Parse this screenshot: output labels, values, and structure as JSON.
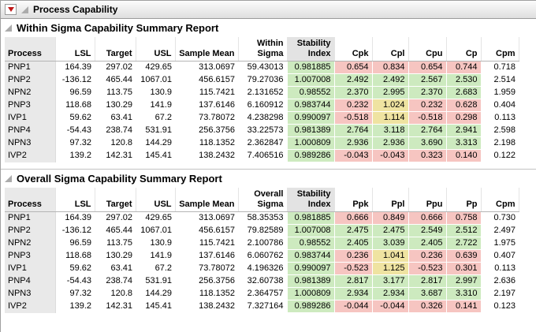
{
  "window_title": "Process Capability",
  "colors": {
    "good": "#cdeabf",
    "warn": "#efe3a1",
    "bad": "#f6c5c1",
    "stability": "#cdeabf"
  },
  "sections": [
    {
      "title": "Within Sigma Capability Summary Report",
      "columns": [
        "Process",
        "LSL",
        "Target",
        "USL",
        "Sample Mean",
        "Within Sigma",
        "Stability Index",
        "Cpk",
        "Cpl",
        "Cpu",
        "Cp",
        "Cpm"
      ],
      "rows": [
        [
          "PNP1",
          "164.39",
          "297.02",
          "429.65",
          "313.0697",
          "59.43013",
          "0.981885",
          "0.654",
          "0.834",
          "0.654",
          "0.744",
          "0.718"
        ],
        [
          "PNP2",
          "-136.12",
          "465.44",
          "1067.01",
          "456.6157",
          "79.27036",
          "1.007008",
          "2.492",
          "2.492",
          "2.567",
          "2.530",
          "2.514"
        ],
        [
          "NPN2",
          "96.59",
          "113.75",
          "130.9",
          "115.7421",
          "2.131652",
          "0.98552",
          "2.370",
          "2.995",
          "2.370",
          "2.683",
          "1.959"
        ],
        [
          "PNP3",
          "118.68",
          "130.29",
          "141.9",
          "137.6146",
          "6.160912",
          "0.983744",
          "0.232",
          "1.024",
          "0.232",
          "0.628",
          "0.404"
        ],
        [
          "IVP1",
          "59.62",
          "63.41",
          "67.2",
          "73.78072",
          "4.238298",
          "0.990097",
          "-0.518",
          "1.114",
          "-0.518",
          "0.298",
          "0.113"
        ],
        [
          "PNP4",
          "-54.43",
          "238.74",
          "531.91",
          "256.3756",
          "33.22573",
          "0.981389",
          "2.764",
          "3.118",
          "2.764",
          "2.941",
          "2.598"
        ],
        [
          "NPN3",
          "97.32",
          "120.8",
          "144.29",
          "118.1352",
          "2.362847",
          "1.000809",
          "2.936",
          "2.936",
          "3.690",
          "3.313",
          "2.198"
        ],
        [
          "IVP2",
          "139.2",
          "142.31",
          "145.41",
          "138.2432",
          "7.406516",
          "0.989286",
          "-0.043",
          "-0.043",
          "0.323",
          "0.140",
          "0.122"
        ]
      ]
    },
    {
      "title": "Overall Sigma Capability Summary Report",
      "columns": [
        "Process",
        "LSL",
        "Target",
        "USL",
        "Sample Mean",
        "Overall Sigma",
        "Stability Index",
        "Ppk",
        "Ppl",
        "Ppu",
        "Pp",
        "Cpm"
      ],
      "rows": [
        [
          "PNP1",
          "164.39",
          "297.02",
          "429.65",
          "313.0697",
          "58.35353",
          "0.981885",
          "0.666",
          "0.849",
          "0.666",
          "0.758",
          "0.730"
        ],
        [
          "PNP2",
          "-136.12",
          "465.44",
          "1067.01",
          "456.6157",
          "79.82589",
          "1.007008",
          "2.475",
          "2.475",
          "2.549",
          "2.512",
          "2.497"
        ],
        [
          "NPN2",
          "96.59",
          "113.75",
          "130.9",
          "115.7421",
          "2.100786",
          "0.98552",
          "2.405",
          "3.039",
          "2.405",
          "2.722",
          "1.975"
        ],
        [
          "PNP3",
          "118.68",
          "130.29",
          "141.9",
          "137.6146",
          "6.060762",
          "0.983744",
          "0.236",
          "1.041",
          "0.236",
          "0.639",
          "0.407"
        ],
        [
          "IVP1",
          "59.62",
          "63.41",
          "67.2",
          "73.78072",
          "4.196326",
          "0.990097",
          "-0.523",
          "1.125",
          "-0.523",
          "0.301",
          "0.113"
        ],
        [
          "PNP4",
          "-54.43",
          "238.74",
          "531.91",
          "256.3756",
          "32.60738",
          "0.981389",
          "2.817",
          "3.177",
          "2.817",
          "2.997",
          "2.636"
        ],
        [
          "NPN3",
          "97.32",
          "120.8",
          "144.29",
          "118.1352",
          "2.364757",
          "1.000809",
          "2.934",
          "2.934",
          "3.687",
          "3.310",
          "2.197"
        ],
        [
          "IVP2",
          "139.2",
          "142.31",
          "145.41",
          "138.2432",
          "7.327164",
          "0.989286",
          "-0.044",
          "-0.044",
          "0.326",
          "0.141",
          "0.123"
        ]
      ]
    }
  ]
}
